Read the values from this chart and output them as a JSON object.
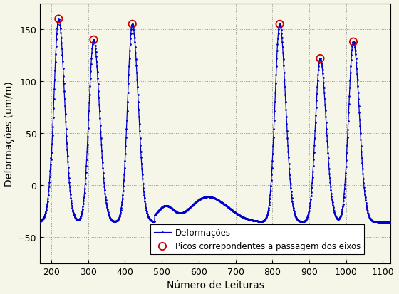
{
  "xlabel": "Número de Leituras",
  "ylabel": "Deformações (um/m)",
  "xlim": [
    170,
    1120
  ],
  "ylim": [
    -75,
    175
  ],
  "xticks": [
    200,
    300,
    400,
    500,
    600,
    700,
    800,
    900,
    1000,
    1100
  ],
  "yticks": [
    -50,
    0,
    50,
    100,
    150
  ],
  "line_color": "#0000CC",
  "peak_marker_color": "#CC0000",
  "legend_line": "Deformações",
  "legend_peaks": "Picos correpondentes a passagem dos eixos",
  "background_color": "#f5f5e8",
  "peaks_x": [
    220,
    315,
    420,
    820,
    930,
    1020
  ],
  "peaks_y": [
    160,
    140,
    155,
    155,
    122,
    138
  ],
  "base_level": -35,
  "figsize": [
    5.6,
    4.14
  ],
  "dpi": 100
}
